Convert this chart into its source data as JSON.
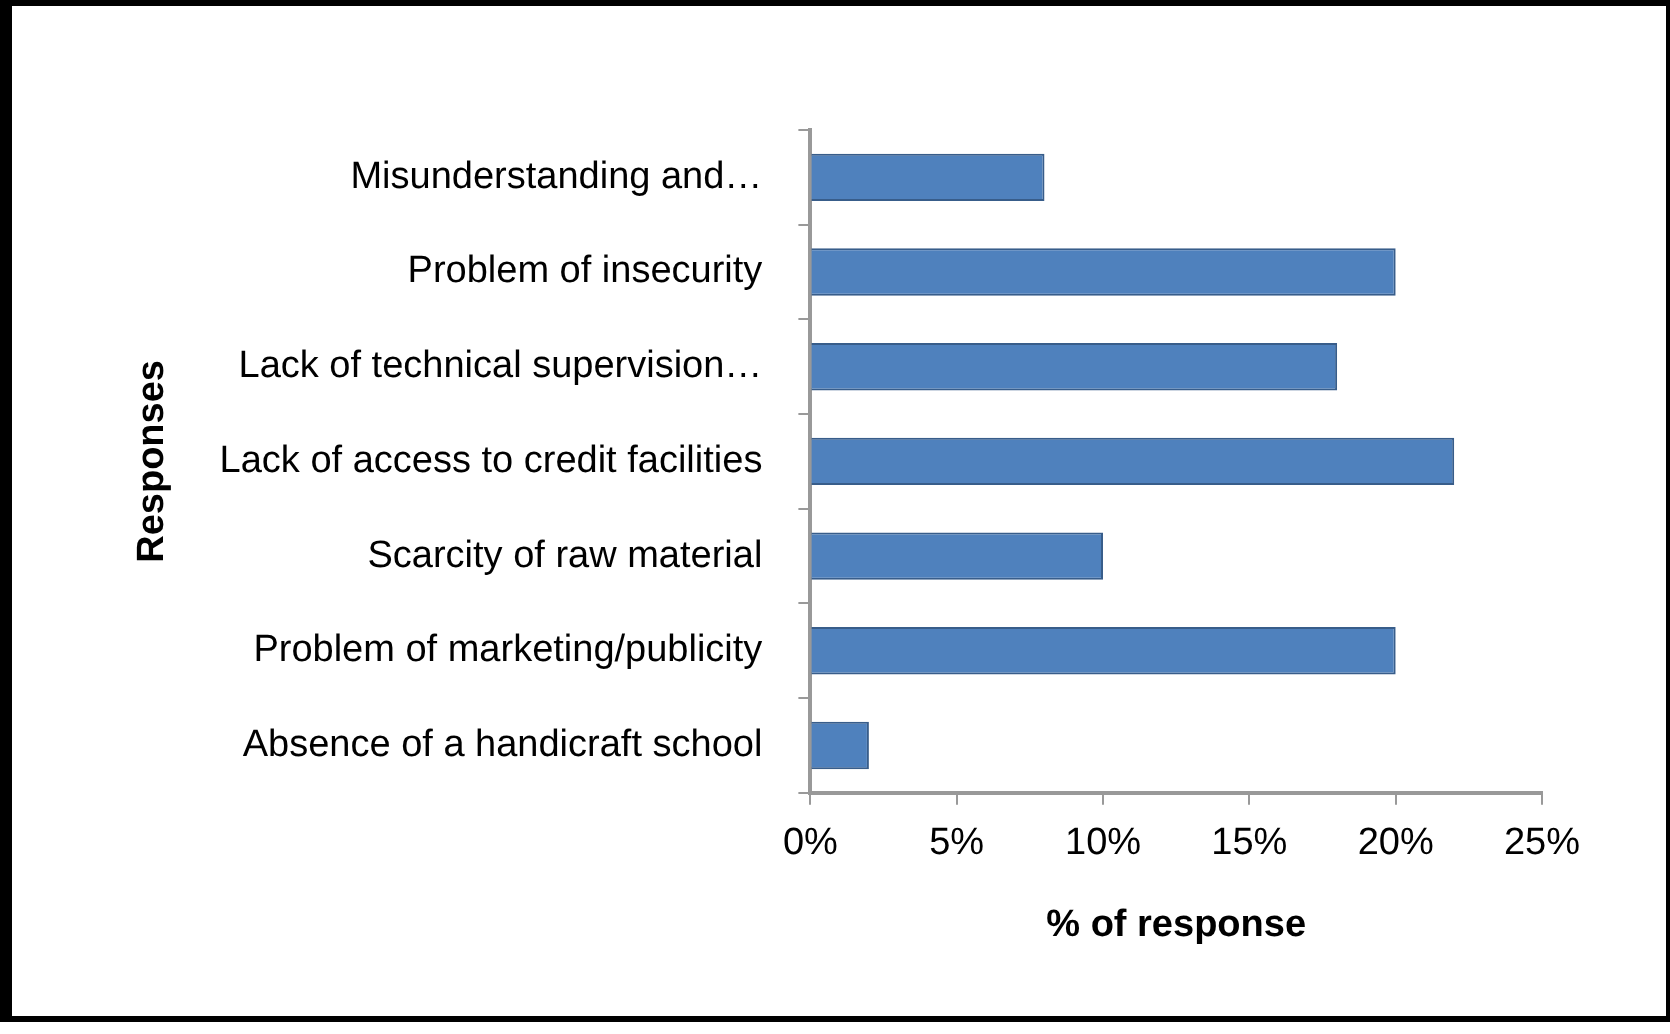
{
  "chart_data": {
    "type": "bar",
    "orientation": "horizontal",
    "xlabel": "% of response",
    "ylabel": "Responses",
    "categories": [
      "Misunderstanding and…",
      "Problem of insecurity",
      "Lack of technical supervision…",
      "Lack of access to credit facilities",
      "Scarcity of raw material",
      "Problem of marketing/publicity",
      "Absence of a handicraft school"
    ],
    "values": [
      8,
      20,
      18,
      22,
      10,
      20,
      2
    ],
    "color": "#4f81bd",
    "xlim": [
      0,
      25
    ],
    "xticks": [
      {
        "value": 0,
        "label": "0%"
      },
      {
        "value": 5,
        "label": "5%"
      },
      {
        "value": 10,
        "label": "10%"
      },
      {
        "value": 15,
        "label": "15%"
      },
      {
        "value": 20,
        "label": "20%"
      },
      {
        "value": 25,
        "label": "25%"
      }
    ],
    "grid": false,
    "legend": false
  }
}
